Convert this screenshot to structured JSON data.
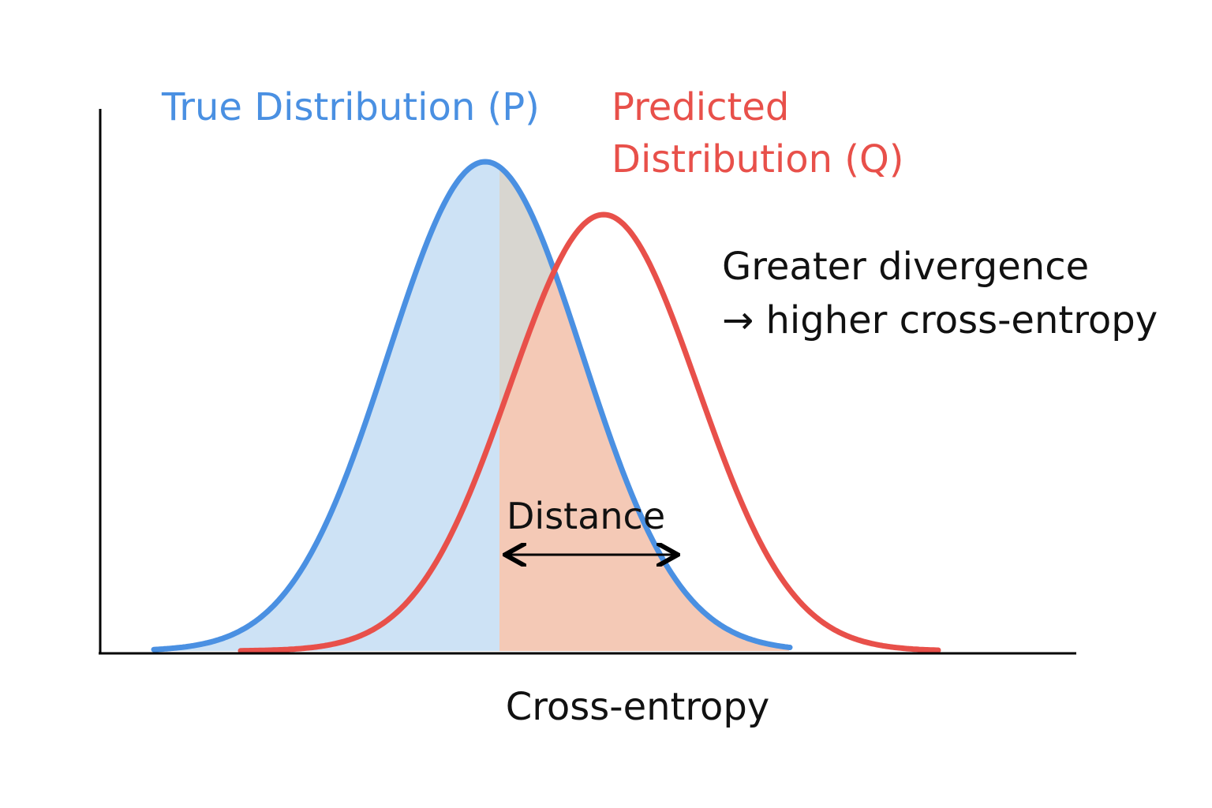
{
  "labels": {
    "true_distribution": "True Distribution (P)",
    "predicted_distribution": [
      "Predicted",
      "Distribution (Q)"
    ],
    "annotation": [
      "Greater divergence",
      "→ higher cross-entropy"
    ],
    "distance": "Distance",
    "x_axis": "Cross-entropy"
  }
}
